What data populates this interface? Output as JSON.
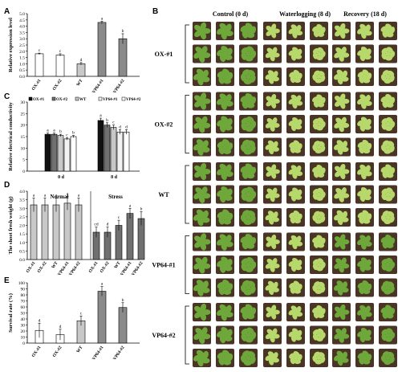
{
  "panels": {
    "A": {
      "letter": "A",
      "ylabel": "Relative expression level"
    },
    "B": {
      "letter": "B",
      "columns": [
        "Control (0 d)",
        "Waterlogging (8 d)",
        "Recovery (18 d)"
      ],
      "rows": [
        "OX-#1",
        "OX-#2",
        "WT",
        "VP64-#1",
        "VP64-#2"
      ]
    },
    "C": {
      "letter": "C",
      "ylabel": "Relative electrical conductivity"
    },
    "D": {
      "letter": "D",
      "ylabel": "The shoot fresh weight (g)"
    },
    "E": {
      "letter": "E",
      "ylabel": "Survival rate (%)"
    }
  },
  "colors": {
    "white_bar": "#ffffff",
    "light_grey": "#c8c8c8",
    "mid_grey": "#8a8a8a",
    "dark_grey": "#707070",
    "black_bar": "#111111",
    "pot": "#4a3426",
    "leaf_light": "#b7d86a",
    "leaf_dark": "#6ea83a"
  },
  "chart_data": [
    {
      "id": "A",
      "type": "bar",
      "categories": [
        "OX-#1",
        "OX-#2",
        "WT",
        "VP64-#1",
        "VP64-#2"
      ],
      "values": [
        1.8,
        1.7,
        1.0,
        4.3,
        3.0
      ],
      "errors": [
        0.05,
        0.1,
        0.1,
        0.1,
        0.4
      ],
      "letters": [
        "c",
        "c",
        "d",
        "a",
        "b"
      ],
      "ylim": [
        0,
        5
      ],
      "yticks": [
        "0.0",
        "0.5",
        "1.0",
        "1.5",
        "2.0",
        "2.5",
        "3.0",
        "3.5",
        "4.0",
        "4.5",
        "5.0"
      ],
      "ylabel": "Relative expression level"
    },
    {
      "id": "C",
      "type": "bar",
      "categories": [
        "0 d",
        "8 d"
      ],
      "series": [
        {
          "name": "OX-#1",
          "values": [
            16,
            22
          ],
          "errors": [
            0.5,
            1.0
          ],
          "letters": [
            "a",
            "a"
          ]
        },
        {
          "name": "OX-#2",
          "values": [
            16,
            20
          ],
          "errors": [
            0.5,
            1.0
          ],
          "letters": [
            "a",
            "b"
          ]
        },
        {
          "name": "WT",
          "values": [
            15.5,
            19
          ],
          "errors": [
            0.5,
            1.0
          ],
          "letters": [
            "b",
            "c"
          ]
        },
        {
          "name": "VP64-#1",
          "values": [
            14,
            17
          ],
          "errors": [
            0.5,
            1.0
          ],
          "letters": [
            "c",
            "d"
          ]
        },
        {
          "name": "VP64-#2",
          "values": [
            15,
            17
          ],
          "errors": [
            0.5,
            1.0
          ],
          "letters": [
            "b",
            "d"
          ]
        }
      ],
      "ylim": [
        0,
        30
      ],
      "yticks": [
        "0",
        "5",
        "10",
        "15",
        "20",
        "25",
        "30"
      ],
      "ylabel": "Relative electrical conductivity",
      "legend": "top"
    },
    {
      "id": "D",
      "type": "bar",
      "groups": [
        "Normal",
        "Stress"
      ],
      "categories": [
        "OX-#1",
        "OX-#2",
        "WT",
        "VP64-#1",
        "VP64-#2"
      ],
      "series": [
        {
          "name": "Normal",
          "values": [
            3.2,
            3.2,
            3.2,
            3.3,
            3.2
          ],
          "errors": [
            0.4,
            0.4,
            0.4,
            0.4,
            0.4
          ],
          "letters": [
            "a",
            "a",
            "a",
            "a",
            "a"
          ]
        },
        {
          "name": "Stress",
          "values": [
            1.6,
            1.6,
            2.0,
            2.7,
            2.4
          ],
          "errors": [
            0.3,
            0.3,
            0.3,
            0.3,
            0.4
          ],
          "letters": [
            "cd",
            "d",
            "c",
            "a",
            "b"
          ]
        }
      ],
      "ylim": [
        0,
        4
      ],
      "yticks": [
        "0.0",
        "0.5",
        "1.0",
        "1.5",
        "2.0",
        "2.5",
        "3.0",
        "3.5",
        "4.0"
      ],
      "ylabel": "The shoot fresh weight (g)"
    },
    {
      "id": "E",
      "type": "bar",
      "categories": [
        "OX-#1",
        "OX-#2",
        "WT",
        "VP64-#1",
        "VP64-#2"
      ],
      "values": [
        21,
        14,
        37,
        86,
        59
      ],
      "errors": [
        12,
        9,
        8,
        8,
        8
      ],
      "letters": [
        "d",
        "d",
        "c",
        "a",
        "b"
      ],
      "ylim": [
        0,
        100
      ],
      "yticks": [
        "0",
        "10",
        "20",
        "30",
        "40",
        "50",
        "60",
        "70",
        "80",
        "90",
        "100"
      ],
      "ylabel": "Survival rate (%)"
    }
  ]
}
